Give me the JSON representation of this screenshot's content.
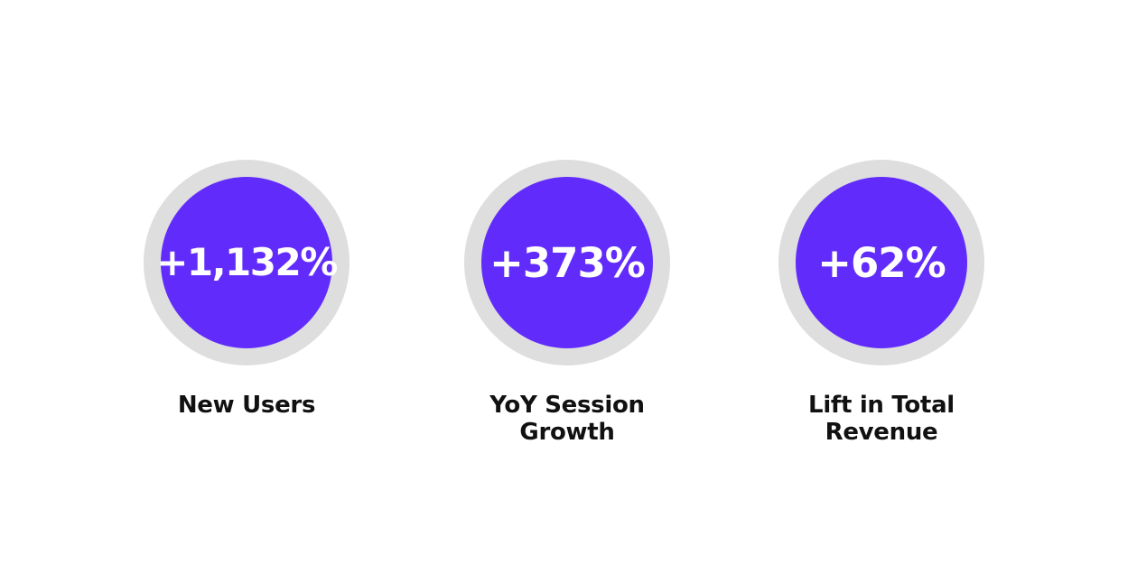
{
  "colors": {
    "background": "#ffffff",
    "ring": "#dededf",
    "disc": "#612cfb",
    "value_text": "#ffffff",
    "label_text": "#111111"
  },
  "stats": [
    {
      "value": "+1,132%",
      "label_lines": [
        "New Users"
      ]
    },
    {
      "value": "+373%",
      "label_lines": [
        "YoY Session",
        "Growth"
      ]
    },
    {
      "value": "+62%",
      "label_lines": [
        "Lift in Total",
        "Revenue"
      ]
    }
  ]
}
